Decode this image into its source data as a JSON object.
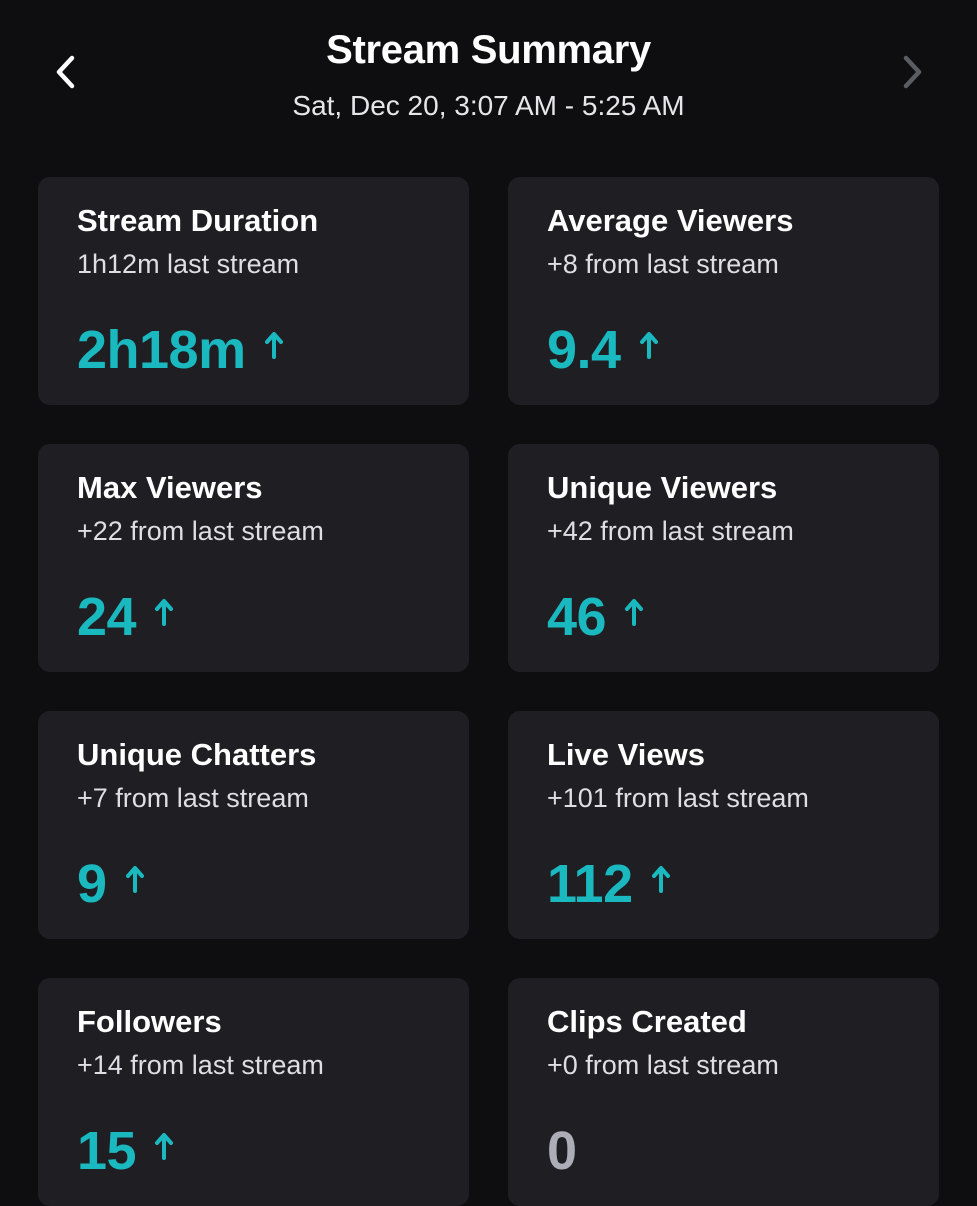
{
  "header": {
    "title": "Stream Summary",
    "subtitle": "Sat, Dec 20, 3:07 AM - 5:25 AM",
    "back_icon": "chevron-left-icon",
    "forward_icon": "chevron-right-icon"
  },
  "colors": {
    "accent": "#1ab8bf",
    "neutral_value": "#adadb8",
    "card_bg": "#1f1f23",
    "page_bg": "#0e0e10"
  },
  "cards": [
    {
      "title": "Stream Duration",
      "delta": "1h12m last stream",
      "value": "2h18m",
      "trend": "up"
    },
    {
      "title": "Average Viewers",
      "delta": "+8 from last stream",
      "value": "9.4",
      "trend": "up"
    },
    {
      "title": "Max Viewers",
      "delta": "+22 from last stream",
      "value": "24",
      "trend": "up"
    },
    {
      "title": "Unique Viewers",
      "delta": "+42 from last stream",
      "value": "46",
      "trend": "up"
    },
    {
      "title": "Unique Chatters",
      "delta": "+7 from last stream",
      "value": "9",
      "trend": "up"
    },
    {
      "title": "Live Views",
      "delta": "+101 from last stream",
      "value": "112",
      "trend": "up"
    },
    {
      "title": "Followers",
      "delta": "+14 from last stream",
      "value": "15",
      "trend": "up"
    },
    {
      "title": "Clips Created",
      "delta": "+0 from last stream",
      "value": "0",
      "trend": "none"
    }
  ]
}
